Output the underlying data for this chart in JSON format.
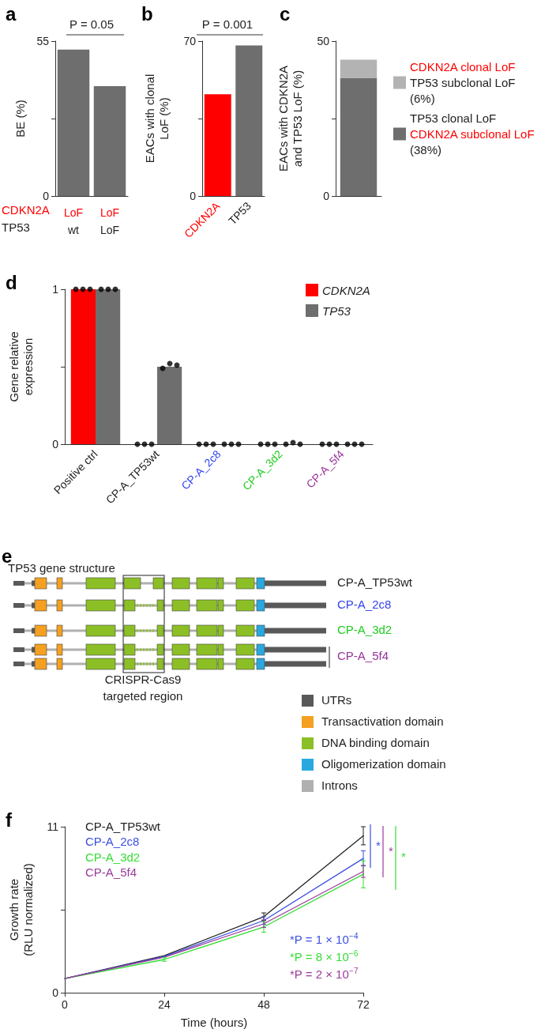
{
  "chart_data": [
    {
      "type": "bar",
      "title": "a",
      "ylabel": "BE (%)",
      "categories": [
        "LoF\nwt",
        "LoF\nLoF"
      ],
      "values": [
        52,
        39
      ],
      "color": "#6e6e6e",
      "ylim": [
        0,
        55
      ],
      "yticks": [
        0,
        {
          "value": 27.5,
          "label": null
        },
        55
      ],
      "annotations": [
        "P = 0.05",
        "CDKN2A",
        "TP53"
      ]
    },
    {
      "type": "bar",
      "title": "b",
      "ylabel": "EACs with clonal\nLoF (%)",
      "categories": [
        "CDKN2A",
        "TP53"
      ],
      "values": [
        46,
        68
      ],
      "colors": [
        "#ff0000",
        "#6e6e6e"
      ],
      "ylim": [
        0,
        70
      ],
      "yticks": [
        0,
        {
          "value": 35,
          "label": null
        },
        70
      ],
      "annotations": [
        "P = 0.001"
      ]
    },
    {
      "type": "bar",
      "title": "c",
      "ylabel": "EACs with CDKN2A\nand TP53 LoF (%)",
      "categories": [
        null
      ],
      "stacked": true,
      "legend": "right",
      "ylim": [
        0,
        50
      ],
      "yticks": [
        0,
        {
          "value": 25,
          "label": null
        },
        50
      ],
      "series": [
        {
          "name": "TP53 clonal LoF\nCDKN2A subclonal LoF\n(38%)",
          "color": "#6e6e6e",
          "values": [
            38
          ]
        },
        {
          "name": "CDKN2A clonal LoF\nTP53 subclonal LoF\n(6%)",
          "color": "#b3b3b3",
          "values": [
            6
          ]
        }
      ]
    },
    {
      "type": "bar",
      "title": "d",
      "ylabel": "Gene relative\nexpression",
      "categories": [
        "Positive ctrl",
        "CP-A_TP53wt",
        "CP-A_2c8",
        "CP-A_3d2",
        "CP-A_5f4"
      ],
      "legend": "top right",
      "ylim": [
        0,
        1
      ],
      "yticks": [
        0,
        {
          "value": 0.5,
          "label": null
        },
        1
      ],
      "series": [
        {
          "name": "CDKN2A",
          "color": "#ff0000",
          "values": [
            1,
            0,
            0,
            0,
            0
          ]
        },
        {
          "name": "TP53",
          "color": "#6e6e6e",
          "values": [
            1,
            0.5,
            0,
            0,
            0
          ]
        },
        {
          "type": "scatter",
          "color": "#000000",
          "x": [
            "Positive ctrl",
            "Positive ctrl",
            "Positive ctrl",
            "Positive ctrl",
            "Positive ctrl",
            "Positive ctrl",
            "CP-A_TP53wt",
            "CP-A_TP53wt",
            "CP-A_TP53wt",
            "CP-A_TP53wt",
            "CP-A_TP53wt",
            "CP-A_TP53wt",
            "CP-A_2c8",
            "CP-A_2c8",
            "CP-A_2c8",
            "CP-A_2c8",
            "CP-A_2c8",
            "CP-A_2c8",
            "CP-A_3d2",
            "CP-A_3d2",
            "CP-A_3d2",
            "CP-A_3d2",
            "CP-A_3d2",
            "CP-A_3d2",
            "CP-A_5f4",
            "CP-A_5f4",
            "CP-A_5f4",
            "CP-A_5f4",
            "CP-A_5f4",
            "CP-A_5f4"
          ],
          "values": [
            1,
            1,
            1,
            1,
            1,
            1,
            0,
            0,
            0,
            0.49,
            0.52,
            0.51,
            0,
            0,
            0,
            0,
            0,
            0,
            0,
            0,
            0,
            0,
            0.01,
            0,
            0,
            0,
            0,
            0,
            0,
            0
          ]
        }
      ]
    },
    {
      "type": "other",
      "title": "e",
      "subtitle": "TP53 gene structure",
      "annotations": [
        "CP-A_TP53wt",
        "CP-A_2c8",
        "CP-A_3d2",
        "CP-A_5f4",
        "CRISPR-Cas9\ntargeted region"
      ],
      "categories": [
        "UTRs",
        "Transactivation domain",
        "DNA binding domain",
        "Oligomerization domain",
        "Introns"
      ],
      "colors": [
        "#595959",
        "#f5a020",
        "#8cbf26",
        "#29a8e0",
        "#b0b0b0"
      ]
    },
    {
      "type": "line",
      "title": "f",
      "xlabel": "Time (hours)",
      "ylabel": "Growth rate\n(RLU normalized)",
      "legend": "top left",
      "marker": "none",
      "xlim": [
        0,
        72
      ],
      "xticks": [
        0,
        24,
        48,
        72
      ],
      "ylim": [
        0,
        11
      ],
      "yticks": [
        0,
        {
          "value": 5.5,
          "label": null
        },
        11
      ],
      "annotations": [
        "*",
        "*",
        "*",
        "*P = 1 × 10$^{−4}$",
        "*P = 8 × 10$^{−6}$",
        "*P = 2 × 10$^{−7}$"
      ],
      "series": [
        {
          "name": "CP-A_TP53wt",
          "color": "#222222",
          "x": [
            0,
            24,
            48,
            72
          ],
          "values": [
            0.94,
            2.45,
            5.04,
            10.4
          ],
          "errors": [
            null,
            null,
            0.25,
            0.6
          ]
        },
        {
          "name": "CP-A_2c8",
          "color": "#3a4fe0",
          "x": [
            0,
            24,
            48,
            72
          ],
          "values": [
            0.94,
            2.4,
            4.78,
            8.9
          ],
          "errors": [
            null,
            null,
            0.25,
            0.5
          ]
        },
        {
          "name": "CP-A_3d2",
          "color": "#33dd33",
          "x": [
            0,
            24,
            48,
            72
          ],
          "values": [
            0.94,
            2.2,
            4.36,
            7.85
          ],
          "errors": [
            null,
            0.12,
            0.35,
            0.9
          ]
        },
        {
          "name": "CP-A_5f4",
          "color": "#9b3a9b",
          "x": [
            0,
            24,
            48,
            72
          ],
          "values": [
            0.94,
            2.35,
            4.57,
            8.04
          ],
          "errors": [
            null,
            null,
            0.25,
            0.4
          ]
        }
      ]
    }
  ]
}
